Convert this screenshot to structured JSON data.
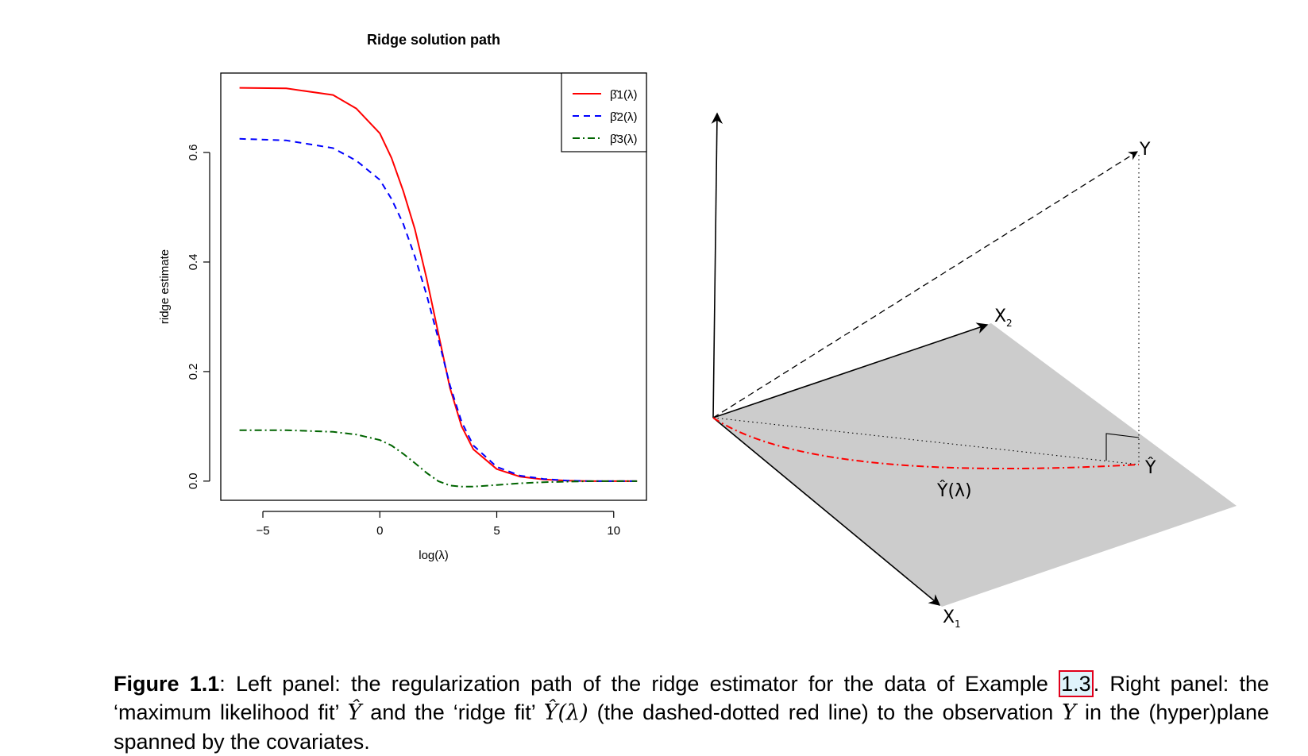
{
  "chart_data": {
    "type": "line",
    "title": "Ridge solution path",
    "xlabel": "log(λ)",
    "ylabel": "ridge estimate",
    "xlim": [
      -6.8,
      11.4
    ],
    "ylim": [
      -0.035,
      0.745
    ],
    "xticks": [
      -5,
      0,
      5,
      10
    ],
    "yticks": [
      0.0,
      0.2,
      0.4,
      0.6
    ],
    "xtick_labels": [
      "−5",
      "0",
      "5",
      "10"
    ],
    "ytick_labels": [
      "0.0",
      "0.2",
      "0.4",
      "0.6"
    ],
    "legend_position": "top-right",
    "series": [
      {
        "name": "β̂1(λ)",
        "color": "#ff0000",
        "dash": "solid",
        "x": [
          -6,
          -4,
          -2,
          -1,
          0,
          0.5,
          1,
          1.5,
          2,
          2.5,
          3,
          3.5,
          4,
          5,
          6,
          7,
          8,
          9,
          10,
          11
        ],
        "y": [
          0.718,
          0.717,
          0.705,
          0.68,
          0.635,
          0.59,
          0.53,
          0.46,
          0.37,
          0.27,
          0.17,
          0.1,
          0.058,
          0.022,
          0.008,
          0.003,
          0.001,
          0.0,
          0.0,
          0.0
        ]
      },
      {
        "name": "β̂2(λ)",
        "color": "#0000ff",
        "dash": "dashed",
        "x": [
          -6,
          -4,
          -2,
          -1,
          0,
          0.5,
          1,
          1.5,
          2,
          2.5,
          3,
          3.5,
          4,
          5,
          6,
          7,
          8,
          9,
          10,
          11
        ],
        "y": [
          0.625,
          0.622,
          0.608,
          0.585,
          0.55,
          0.515,
          0.47,
          0.41,
          0.34,
          0.26,
          0.175,
          0.108,
          0.065,
          0.026,
          0.01,
          0.004,
          0.001,
          0.0,
          0.0,
          0.0
        ]
      },
      {
        "name": "β̂3(λ)",
        "color": "#006400",
        "dash": "dashdot",
        "x": [
          -6,
          -4,
          -2,
          -1,
          0,
          0.5,
          1,
          1.5,
          2,
          2.5,
          3,
          3.5,
          4,
          5,
          6,
          7,
          8,
          9,
          10,
          11
        ],
        "y": [
          0.093,
          0.093,
          0.09,
          0.085,
          0.075,
          0.065,
          0.05,
          0.033,
          0.015,
          0.0,
          -0.008,
          -0.01,
          -0.01,
          -0.007,
          -0.004,
          -0.002,
          -0.001,
          0.0,
          0.0,
          0.0
        ]
      }
    ]
  },
  "geometry_panel": {
    "labels": {
      "y": "Y",
      "x2_main": "X",
      "x2_sub": "2",
      "x1_main": "X",
      "x1_sub": "1",
      "yhat": "Ŷ",
      "yhat_lambda": "Ŷ(λ)"
    },
    "colors": {
      "plane": "#cccccc",
      "ridge_path": "#ff0000",
      "axes": "#000000"
    }
  },
  "caption": {
    "figure_label": "Figure 1.1",
    "part1": ": Left panel: the regularization path of the ridge estimator for the data of Example ",
    "ref": "1.3",
    "part2": ". Right panel: the ‘maximum likelihood fit’ ",
    "math1": "Ŷ",
    "part3": " and the ‘ridge fit’ ",
    "math2": "Ŷ(λ)",
    "part4": " (the dashed-dotted red line) to the observation ",
    "math3": "Y",
    "part5": " in the (hyper)plane spanned by the covariates."
  }
}
